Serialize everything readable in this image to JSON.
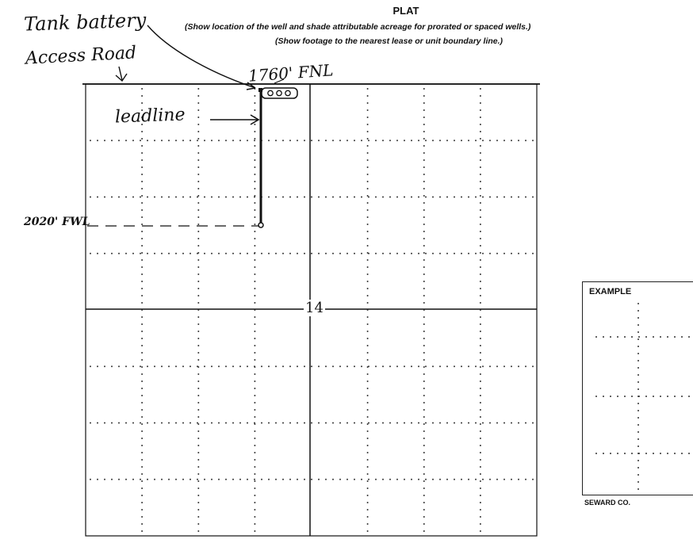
{
  "header": {
    "title": "PLAT",
    "instruction_1": "(Show location of the well and shade attributable acreage for prorated or spaced wells.)",
    "instruction_2": "(Show footage to the nearest lease or unit boundary line.)"
  },
  "annotations": {
    "tank_battery": "Tank battery",
    "access_road": "Access Road",
    "fnl_north": "1760' FNL",
    "leadline": "leadline",
    "fwl_west": "2020' FWL"
  },
  "plat": {
    "section_number": "14"
  },
  "example": {
    "title": "EXAMPLE",
    "county": "SEWARD CO."
  },
  "colors": {
    "ink": "#111111",
    "dots": "#333333"
  }
}
